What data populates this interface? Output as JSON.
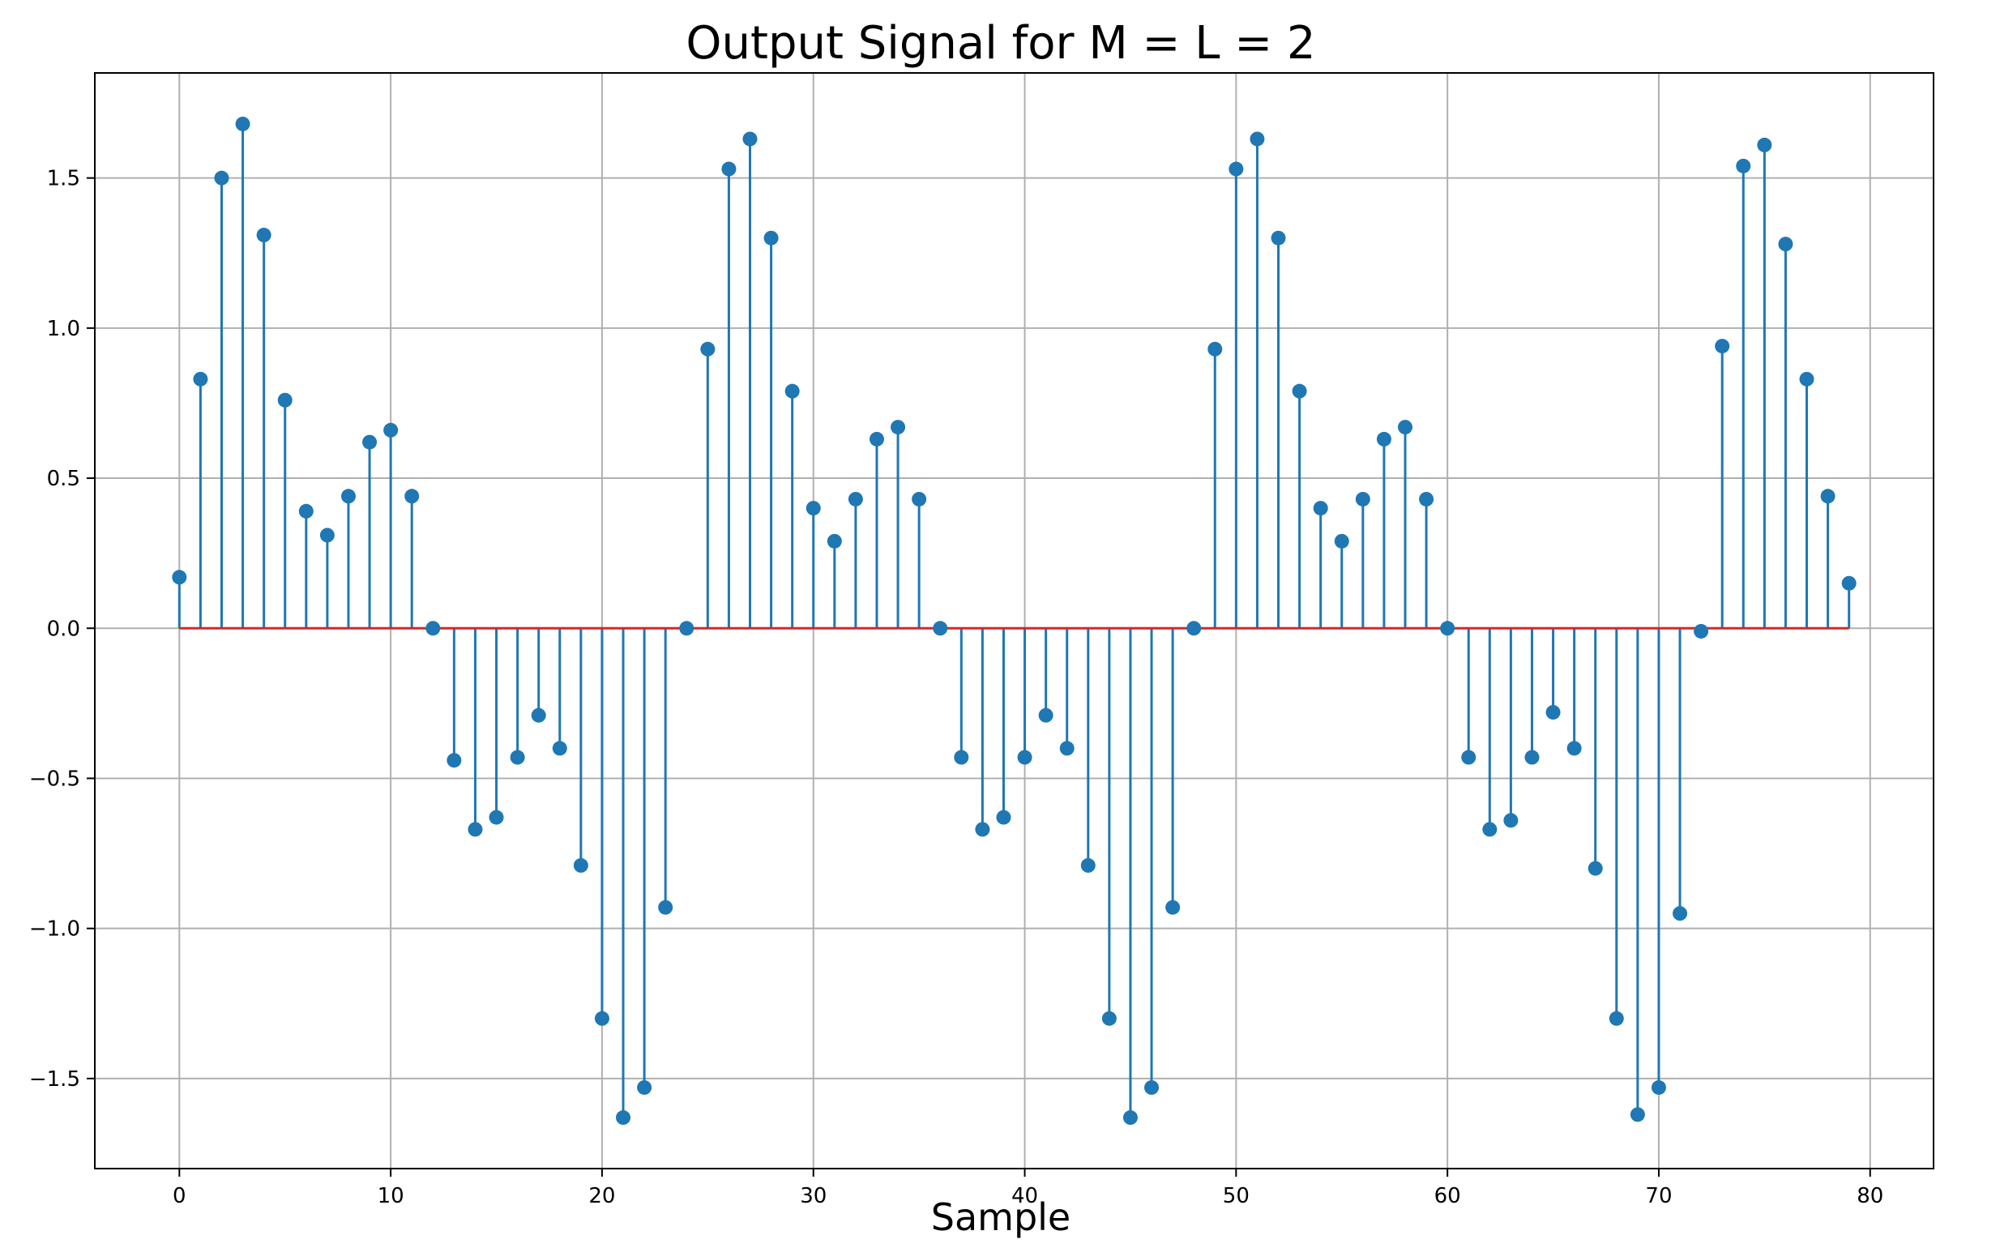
{
  "chart_data": {
    "type": "stem",
    "title": "Output Signal for M = L = 2",
    "xlabel": "Sample",
    "ylabel": "",
    "xlim": [
      -4,
      83
    ],
    "ylim": [
      -1.8,
      1.85
    ],
    "xticks": [
      0,
      10,
      20,
      30,
      40,
      50,
      60,
      70,
      80
    ],
    "yticks": [
      -1.5,
      -1.0,
      -0.5,
      0.0,
      0.5,
      1.0,
      1.5
    ],
    "xtick_labels": [
      "0",
      "10",
      "20",
      "30",
      "40",
      "50",
      "60",
      "70",
      "80"
    ],
    "ytick_labels": [
      "−1.5",
      "−1.0",
      "−0.5",
      "0.0",
      "0.5",
      "1.0",
      "1.5"
    ],
    "grid": true,
    "stem_color": "#1f77b4",
    "baseline_color": "#d62728",
    "x": [
      0,
      1,
      2,
      3,
      4,
      5,
      6,
      7,
      8,
      9,
      10,
      11,
      12,
      13,
      14,
      15,
      16,
      17,
      18,
      19,
      20,
      21,
      22,
      23,
      24,
      25,
      26,
      27,
      28,
      29,
      30,
      31,
      32,
      33,
      34,
      35,
      36,
      37,
      38,
      39,
      40,
      41,
      42,
      43,
      44,
      45,
      46,
      47,
      48,
      49,
      50,
      51,
      52,
      53,
      54,
      55,
      56,
      57,
      58,
      59,
      60,
      61,
      62,
      63,
      64,
      65,
      66,
      67,
      68,
      69,
      70,
      71,
      72,
      73,
      74,
      75,
      76,
      77,
      78,
      79
    ],
    "y": [
      0.17,
      0.83,
      1.5,
      1.68,
      1.31,
      0.76,
      0.39,
      0.31,
      0.44,
      0.62,
      0.66,
      0.44,
      0.0,
      -0.44,
      -0.67,
      -0.63,
      -0.43,
      -0.29,
      -0.4,
      -0.79,
      -1.3,
      -1.63,
      -1.53,
      -0.93,
      0.0,
      0.93,
      1.53,
      1.63,
      1.3,
      0.79,
      0.4,
      0.29,
      0.43,
      0.63,
      0.67,
      0.43,
      0.0,
      -0.43,
      -0.67,
      -0.63,
      -0.43,
      -0.29,
      -0.4,
      -0.79,
      -1.3,
      -1.63,
      -1.53,
      -0.93,
      0.0,
      0.93,
      1.53,
      1.63,
      1.3,
      0.79,
      0.4,
      0.29,
      0.43,
      0.63,
      0.67,
      0.43,
      0.0,
      -0.43,
      -0.67,
      -0.64,
      -0.43,
      -0.28,
      -0.4,
      -0.8,
      -1.3,
      -1.62,
      -1.53,
      -0.95,
      -0.01,
      0.94,
      1.54,
      1.61,
      1.28,
      0.83,
      0.44,
      0.15
    ]
  }
}
